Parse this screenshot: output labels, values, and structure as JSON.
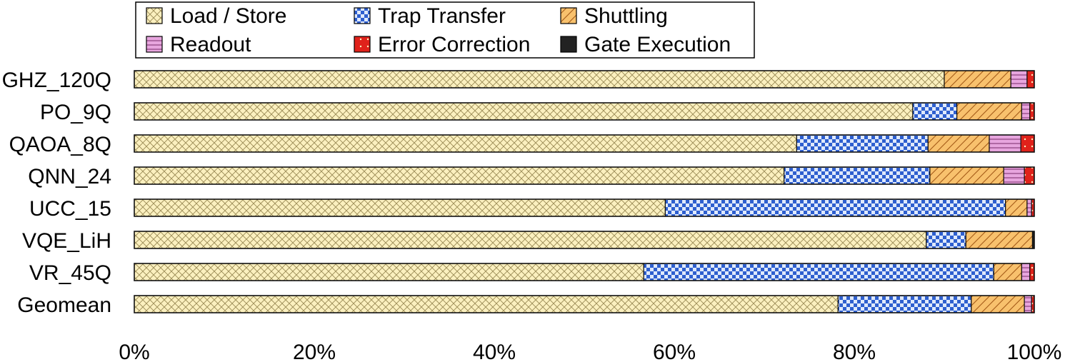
{
  "chart_data": {
    "type": "bar",
    "orientation": "horizontal",
    "stacked": "percent",
    "categories": [
      "GHZ_120Q",
      "PO_9Q",
      "QAOA_8Q",
      "QNN_24",
      "UCC_15",
      "VQE_LiH",
      "VR_45Q",
      "Geomean"
    ],
    "series": [
      {
        "name": "Load / Store",
        "values": [
          90.0,
          86.5,
          73.6,
          72.2,
          59.0,
          88.0,
          56.6,
          78.2
        ],
        "color": "#fbf0bf",
        "pattern": "crosshatch"
      },
      {
        "name": "Trap Transfer",
        "values": [
          0.0,
          4.9,
          14.6,
          16.2,
          37.8,
          4.4,
          38.9,
          14.8
        ],
        "color": "#3a6ad6",
        "pattern": "checker"
      },
      {
        "name": "Shuttling",
        "values": [
          7.4,
          7.2,
          6.8,
          8.2,
          2.4,
          7.4,
          3.1,
          5.9
        ],
        "color": "#f8c16d",
        "pattern": "diagonal"
      },
      {
        "name": "Readout",
        "values": [
          1.8,
          0.9,
          3.5,
          2.3,
          0.5,
          0.0,
          0.9,
          0.8
        ],
        "color": "#e7a5de",
        "pattern": "horizontal"
      },
      {
        "name": "Error Correction",
        "values": [
          0.8,
          0.5,
          1.5,
          1.1,
          0.3,
          0.0,
          0.5,
          0.3
        ],
        "color": "#e0221b",
        "pattern": "dot"
      },
      {
        "name": "Gate Execution",
        "values": [
          0.0,
          0.0,
          0.0,
          0.0,
          0.0,
          0.2,
          0.0,
          0.0
        ],
        "color": "#222222",
        "pattern": "solid"
      }
    ],
    "xlim": [
      0,
      100
    ],
    "x_ticks": [
      "0%",
      "20%",
      "40%",
      "60%",
      "80%",
      "100%"
    ],
    "grid": false,
    "legend_position": "top"
  }
}
